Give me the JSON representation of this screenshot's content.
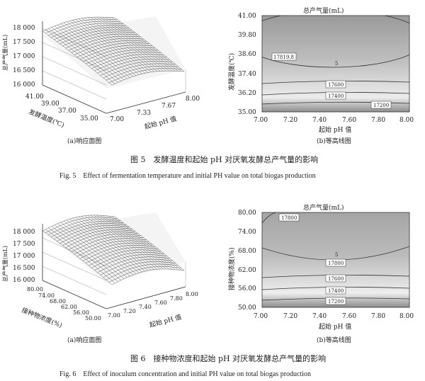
{
  "figures": [
    {
      "surface_ticks_z": [
        "18 000",
        "17 500",
        "17 000",
        "16 500",
        "16 000"
      ],
      "surface_zlabel": "总产气量(mL)",
      "surface_y_ticks": [
        "41.00",
        "39.00",
        "37.00",
        "35.00"
      ],
      "surface_ylabel": "发酵温度(℃)",
      "surface_x_ticks": [
        "7.00",
        "7.33",
        "7.67",
        "8.00"
      ],
      "surface_xlabel": "起始 pH 值",
      "sub_a": "(a)响应面图",
      "contour_title": "总产气量(mL)",
      "contour_ylabel": "发酵温度(℃)",
      "contour_y_ticks": [
        "41.00",
        "39.80",
        "38.60",
        "37.40",
        "36.20",
        "35.00"
      ],
      "contour_x_ticks": [
        "7.00",
        "7.20",
        "7.40",
        "7.60",
        "7.80",
        "8.00"
      ],
      "contour_xlabel": "起始 pH 值",
      "contour_labels": [
        "17819.8",
        "17600",
        "17400",
        "17200"
      ],
      "center_marker": "5",
      "sub_b": "(b)等高线图",
      "caption_cn": "图 5　发酵温度和起始 pH 对厌氧发酵总产气量的影响",
      "caption_en": "Fig. 5　Effect of fermentation temperature and initial PH value on total biogas production"
    },
    {
      "surface_ticks_z": [
        "18 000",
        "17 500",
        "17 000",
        "16 500",
        "16 000"
      ],
      "surface_zlabel": "总产气量(mL)",
      "surface_y_ticks": [
        "80.00",
        "74.00",
        "68.00",
        "62.00",
        "56.00",
        "50.00"
      ],
      "surface_ylabel": "接种物浓度(%)",
      "surface_x_ticks": [
        "7.00",
        "7.20",
        "7.40",
        "7.60",
        "7.80",
        "8.00"
      ],
      "surface_xlabel": "起始 pH 值",
      "sub_a": "(a)响应面图",
      "contour_title": "总产气量(mL)",
      "contour_ylabel": "接种物浓度(%)",
      "contour_y_ticks": [
        "80.00",
        "74.00",
        "68.00",
        "62.00",
        "56.00",
        "50.00"
      ],
      "contour_x_ticks": [
        "7.00",
        "7.20",
        "7.40",
        "7.60",
        "7.80",
        "8.00"
      ],
      "contour_xlabel": "起始 pH 值",
      "contour_labels": [
        "17800",
        "17800",
        "17600",
        "17400",
        "17200"
      ],
      "center_marker": "5",
      "sub_b": "(b)等高线图",
      "caption_cn": "图 6　接种物浓度和起始 pH 对厌氧发酵总产气量的影响",
      "caption_en": "Fig. 6　Effect of inoculum concentration and initial PH value on total biogas production"
    }
  ],
  "chart_data": [
    {
      "type": "surface",
      "title": "",
      "zlabel": "总产气量(mL)",
      "xlabel": "起始 pH 值",
      "ylabel": "发酵温度(℃)",
      "xlim": [
        7.0,
        8.0
      ],
      "ylim": [
        35.0,
        41.0
      ],
      "zlim": [
        16000,
        18000
      ]
    },
    {
      "type": "contour",
      "title": "总产气量(mL)",
      "xlabel": "起始 pH 值",
      "ylabel": "发酵温度(℃)",
      "xlim": [
        7.0,
        8.0
      ],
      "ylim": [
        35.0,
        41.0
      ],
      "levels": [
        {
          "value": 17819.8,
          "label": "17819.8"
        },
        {
          "value": 17600,
          "label": "17600"
        },
        {
          "value": 17400,
          "label": "17400"
        },
        {
          "value": 17200,
          "label": "17200"
        }
      ]
    },
    {
      "type": "surface",
      "title": "",
      "zlabel": "总产气量(mL)",
      "xlabel": "起始 pH 值",
      "ylabel": "接种物浓度(%)",
      "xlim": [
        7.0,
        8.0
      ],
      "ylim": [
        50.0,
        80.0
      ],
      "zlim": [
        16000,
        18000
      ]
    },
    {
      "type": "contour",
      "title": "总产气量(mL)",
      "xlabel": "起始 pH 值",
      "ylabel": "接种物浓度(%)",
      "xlim": [
        7.0,
        8.0
      ],
      "ylim": [
        50.0,
        80.0
      ],
      "levels": [
        {
          "value": 17800,
          "label": "17800"
        },
        {
          "value": 17600,
          "label": "17600"
        },
        {
          "value": 17400,
          "label": "17400"
        },
        {
          "value": 17200,
          "label": "17200"
        }
      ]
    }
  ]
}
